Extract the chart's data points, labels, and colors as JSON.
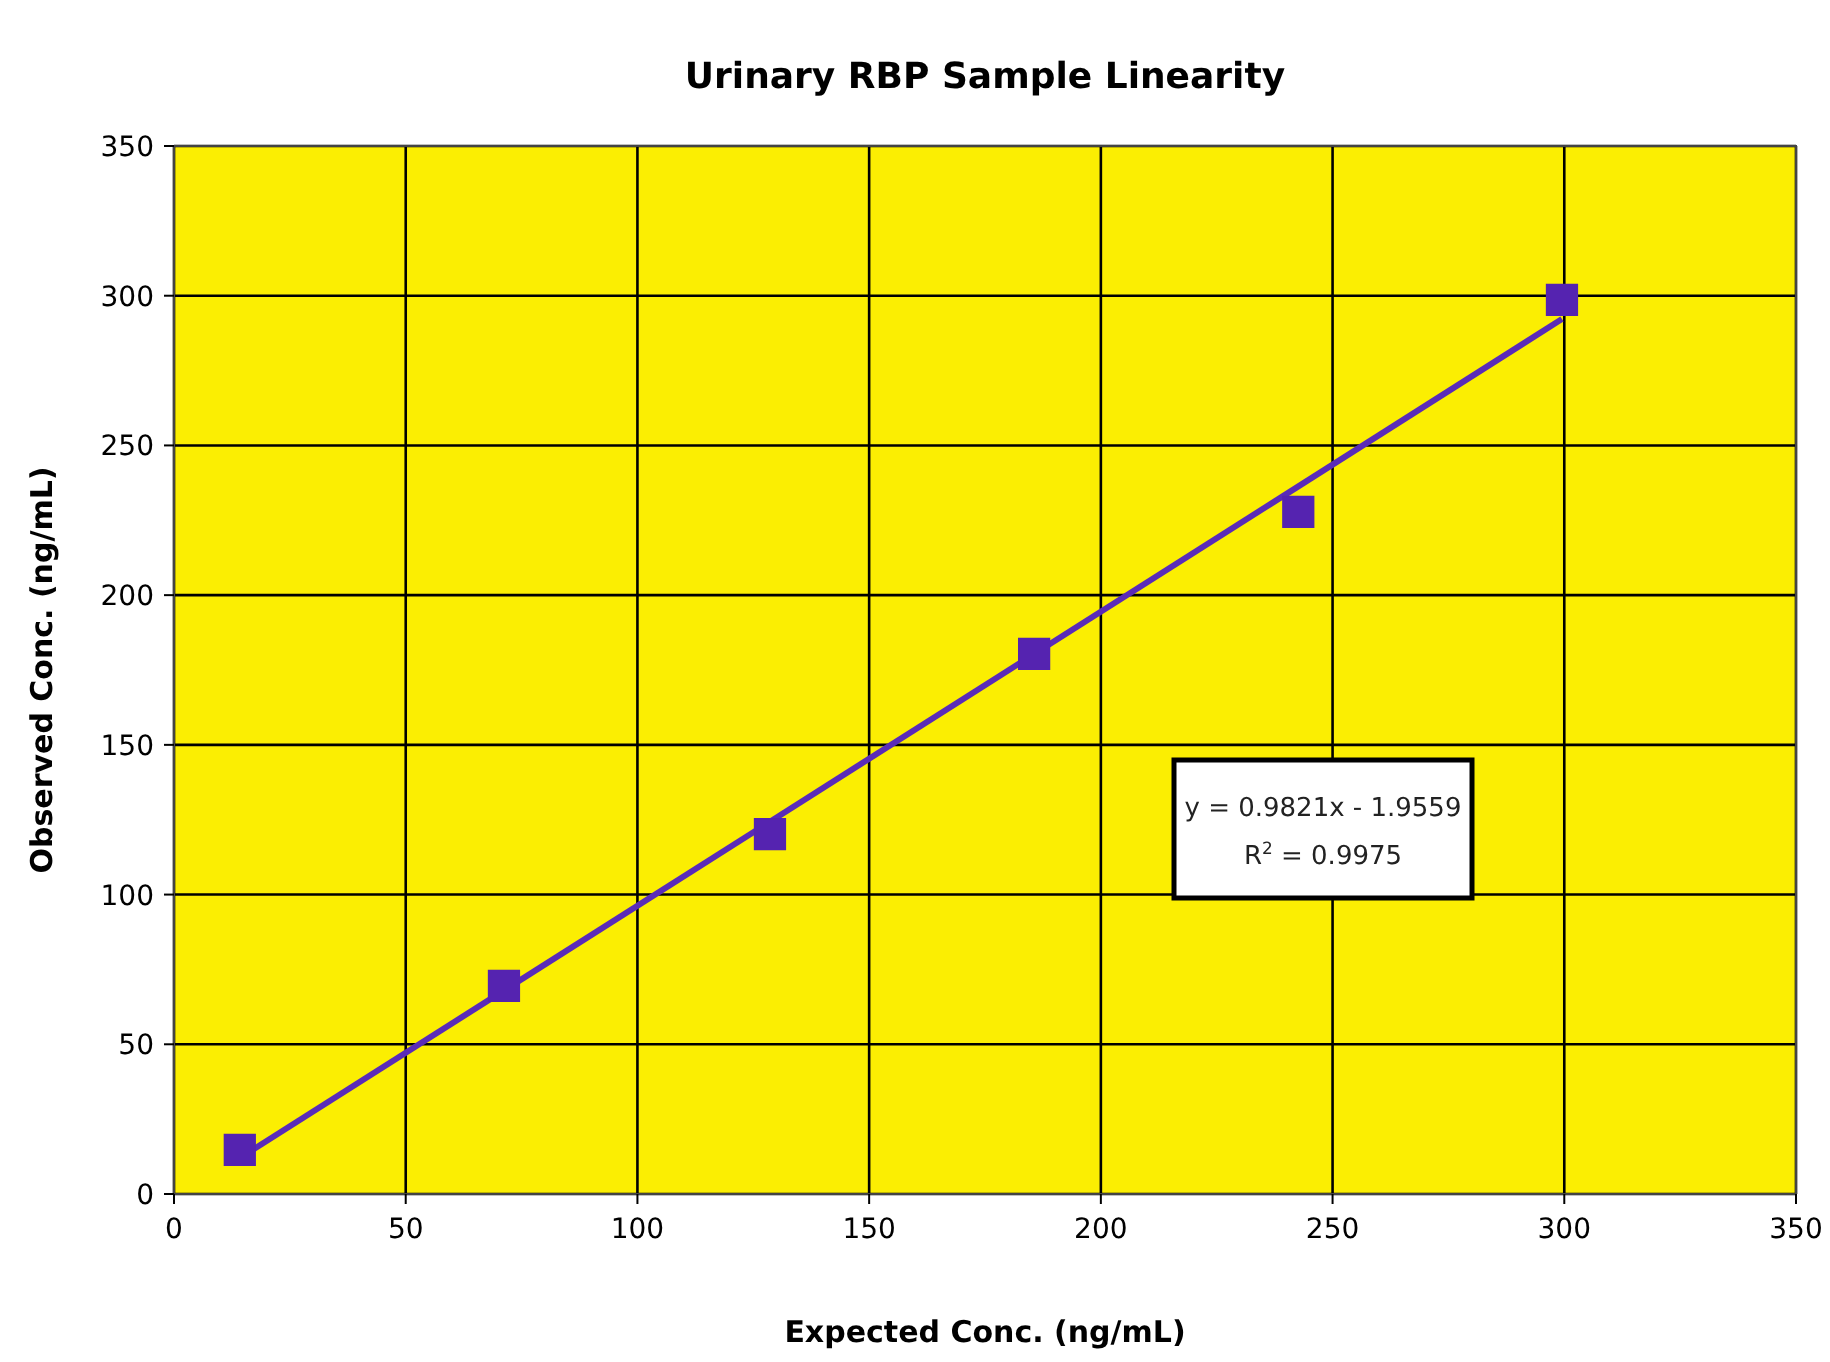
{
  "chart_data": {
    "type": "scatter",
    "title": "Urinary RBP Sample Linearity",
    "xlabel": "Expected Conc. (ng/mL)",
    "ylabel": "Observed Conc. (ng/mL)",
    "xlim": [
      0,
      350
    ],
    "xticks": [
      0,
      50,
      100,
      150,
      200,
      250,
      300,
      350
    ],
    "ylim": [
      0,
      350
    ],
    "yticks": [
      0,
      50,
      100,
      150,
      200,
      250,
      300,
      350
    ],
    "grid": true,
    "series": [
      {
        "color": "#5523b0",
        "marker": "square",
        "x": [
          14.2,
          71.2,
          128.6,
          185.6,
          242.6,
          299.5
        ],
        "values": [
          14.7,
          69.5,
          120.2,
          180.4,
          227.8,
          298.6
        ]
      },
      {
        "type": "line",
        "color": "#5a2bb8",
        "marker": "none",
        "line_style": "solid",
        "x": [
          14.2,
          299.5
        ],
        "values": [
          12,
          292.2
        ]
      }
    ],
    "annotations": [
      "y = 0.9821x - 1.9559",
      "R$^{2}$ = 0.9975"
    ]
  }
}
